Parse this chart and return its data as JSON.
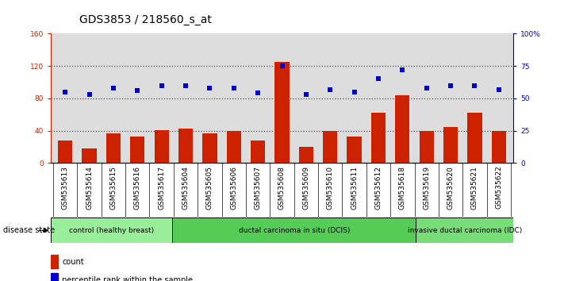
{
  "title": "GDS3853 / 218560_s_at",
  "samples": [
    "GSM535613",
    "GSM535614",
    "GSM535615",
    "GSM535616",
    "GSM535617",
    "GSM535604",
    "GSM535605",
    "GSM535606",
    "GSM535607",
    "GSM535608",
    "GSM535609",
    "GSM535610",
    "GSM535611",
    "GSM535612",
    "GSM535618",
    "GSM535619",
    "GSM535620",
    "GSM535621",
    "GSM535622"
  ],
  "counts": [
    28,
    18,
    37,
    33,
    41,
    43,
    37,
    40,
    28,
    125,
    20,
    40,
    33,
    62,
    84,
    40,
    45,
    62,
    40
  ],
  "percentiles": [
    55,
    53,
    58,
    56,
    60,
    60,
    58,
    58,
    54,
    75,
    53,
    57,
    55,
    65,
    72,
    58,
    60,
    60,
    57
  ],
  "bar_color": "#cc2200",
  "dot_color": "#0000cc",
  "left_ylim": [
    0,
    160
  ],
  "right_ylim": [
    0,
    100
  ],
  "left_yticks": [
    0,
    40,
    80,
    120,
    160
  ],
  "right_yticks": [
    0,
    25,
    50,
    75,
    100
  ],
  "right_yticklabels": [
    "0",
    "25",
    "50",
    "75",
    "100%"
  ],
  "hlines": [
    40,
    80,
    120
  ],
  "groups": [
    {
      "label": "control (healthy breast)",
      "start": 0,
      "end": 5,
      "color": "#99ee99"
    },
    {
      "label": "ductal carcinoma in situ (DCIS)",
      "start": 5,
      "end": 15,
      "color": "#55cc55"
    },
    {
      "label": "invasive ductal carcinoma (IDC)",
      "start": 15,
      "end": 19,
      "color": "#77dd77"
    }
  ],
  "disease_state_label": "disease state",
  "legend_count_label": "count",
  "legend_percentile_label": "percentile rank within the sample",
  "title_fontsize": 10,
  "tick_fontsize": 6.5,
  "label_fontsize": 7,
  "axis_label_color_left": "#cc2200",
  "axis_label_color_right": "#0000cc",
  "bg_color": "#ffffff",
  "plot_bg_color": "#dddddd",
  "xtick_bg_color": "#cccccc"
}
